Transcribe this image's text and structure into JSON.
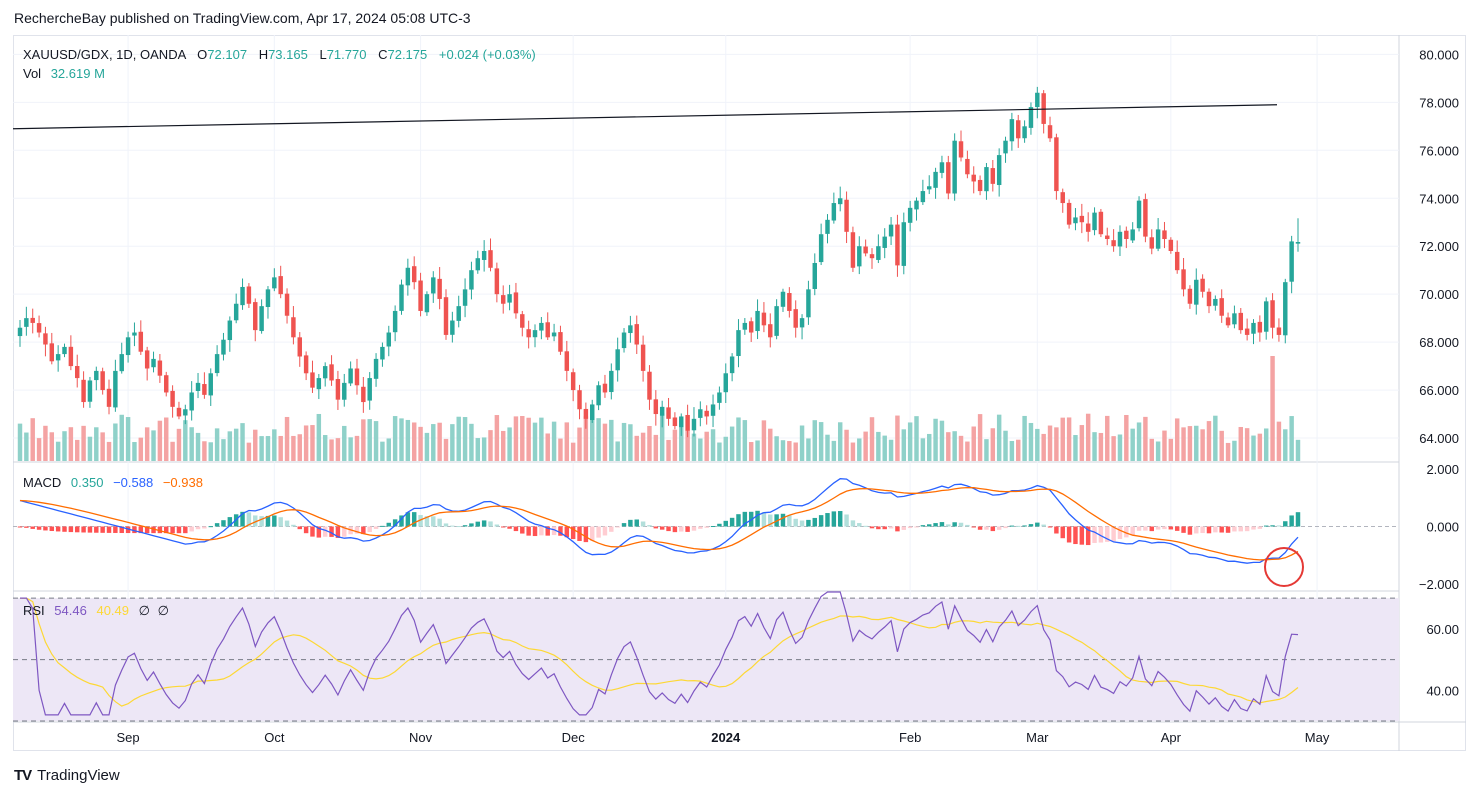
{
  "header": {
    "publisher": "RechercheBay",
    "text": "RechercheBay published on TradingView.com, Apr 17, 2024 05:08 UTC-3"
  },
  "footer": {
    "logo_text": "TV",
    "brand": "TradingView"
  },
  "colors": {
    "up": "#26a69a",
    "down": "#ef5350",
    "vol_up": "#8fd1c9",
    "vol_down": "#f4a3a3",
    "macd": "#2962ff",
    "signal": "#ff6d00",
    "hist_up_strong": "#26a69a",
    "hist_up_weak": "#b2dfdb",
    "hist_down_strong": "#ff5252",
    "hist_down_weak": "#ffcdd2",
    "rsi": "#7e57c2",
    "rsi_ma": "#fdd835",
    "rsi_band": "#ede7f6"
  },
  "legend": {
    "symbol": "XAUUSD/GDX, 1D, OANDA",
    "o_label": "O",
    "o_value": "72.107",
    "h_label": "H",
    "h_value": "73.165",
    "l_label": "L",
    "l_value": "71.770",
    "c_label": "C",
    "c_value": "72.175",
    "change": "+0.024 (+0.03%)",
    "vol_label": "Vol",
    "vol_value": "32.619 M",
    "macd_label": "MACD",
    "macd_value": "0.350",
    "macd_line": "−0.588",
    "macd_signal": "−0.938",
    "rsi_label": "RSI",
    "rsi_value": "54.46",
    "rsi_ma_value": "40.49",
    "rsi_extra1": "∅",
    "rsi_extra2": "∅"
  },
  "chart_data": {
    "type": "candlestick",
    "price_axis": {
      "ticks": [
        "80.000",
        "78.000",
        "76.000",
        "74.000",
        "72.000",
        "70.000",
        "68.000",
        "66.000",
        "64.000"
      ],
      "range": [
        63.0,
        80.6
      ]
    },
    "macd_axis": {
      "ticks": [
        "2.000",
        "0.000",
        "−2.000"
      ],
      "range": [
        -2.2,
        2.2
      ]
    },
    "rsi_axis": {
      "ticks": [
        "60.00",
        "40.00"
      ],
      "range": [
        30,
        72
      ],
      "bands": [
        70,
        50,
        30
      ]
    },
    "x_ticks": [
      "Sep",
      "Oct",
      "Nov",
      "Dec",
      "2024",
      "Feb",
      "Mar",
      "Apr",
      "May"
    ],
    "trendline": {
      "start": 76.9,
      "end": 77.9
    },
    "closes": [
      68.6,
      69.0,
      68.8,
      68.4,
      67.9,
      67.2,
      67.5,
      67.8,
      67.0,
      66.5,
      65.5,
      66.4,
      66.8,
      66.0,
      65.3,
      66.8,
      67.5,
      68.2,
      68.4,
      67.6,
      66.9,
      67.3,
      66.6,
      65.9,
      65.3,
      64.9,
      65.2,
      65.9,
      66.3,
      65.8,
      66.7,
      67.5,
      68.1,
      68.9,
      69.6,
      70.3,
      69.6,
      68.5,
      69.5,
      70.2,
      70.7,
      70.0,
      69.1,
      68.2,
      67.4,
      66.7,
      66.1,
      66.5,
      67.0,
      66.4,
      65.6,
      66.3,
      66.9,
      66.2,
      65.5,
      66.5,
      67.3,
      67.8,
      68.4,
      69.3,
      70.4,
      71.1,
      70.5,
      69.3,
      70.0,
      70.7,
      69.8,
      68.3,
      68.9,
      69.5,
      70.2,
      71.0,
      71.5,
      71.8,
      71.1,
      70.0,
      69.6,
      70.0,
      69.2,
      68.6,
      68.2,
      68.5,
      68.8,
      68.2,
      68.4,
      67.6,
      66.8,
      66.0,
      65.2,
      64.8,
      65.4,
      66.2,
      65.9,
      66.8,
      67.7,
      68.4,
      68.7,
      67.9,
      66.8,
      65.6,
      65.0,
      65.3,
      64.8,
      64.5,
      64.9,
      64.3,
      64.8,
      65.2,
      64.9,
      65.4,
      65.9,
      66.7,
      67.4,
      68.5,
      68.8,
      68.4,
      69.3,
      68.7,
      68.2,
      69.5,
      70.1,
      69.3,
      68.6,
      69.0,
      70.2,
      71.3,
      72.5,
      73.1,
      73.8,
      74.0,
      72.6,
      71.1,
      72.0,
      71.7,
      71.5,
      72.0,
      72.4,
      72.9,
      71.2,
      73.0,
      73.6,
      73.9,
      74.3,
      74.5,
      75.1,
      75.5,
      74.2,
      76.4,
      75.7,
      75.0,
      74.7,
      74.3,
      75.3,
      74.6,
      75.8,
      76.4,
      77.3,
      76.5,
      77.0,
      77.8,
      78.4,
      77.1,
      76.5,
      74.3,
      73.8,
      72.9,
      73.2,
      73.0,
      72.6,
      73.4,
      72.5,
      72.3,
      72.0,
      72.6,
      72.3,
      72.7,
      73.9,
      72.4,
      71.9,
      72.7,
      72.3,
      71.8,
      71.0,
      70.2,
      69.6,
      70.6,
      70.1,
      69.5,
      69.8,
      69.1,
      68.7,
      69.2,
      68.5,
      68.3,
      68.8,
      68.4,
      69.7,
      68.6,
      68.3,
      70.5,
      72.2,
      72.175
    ]
  }
}
